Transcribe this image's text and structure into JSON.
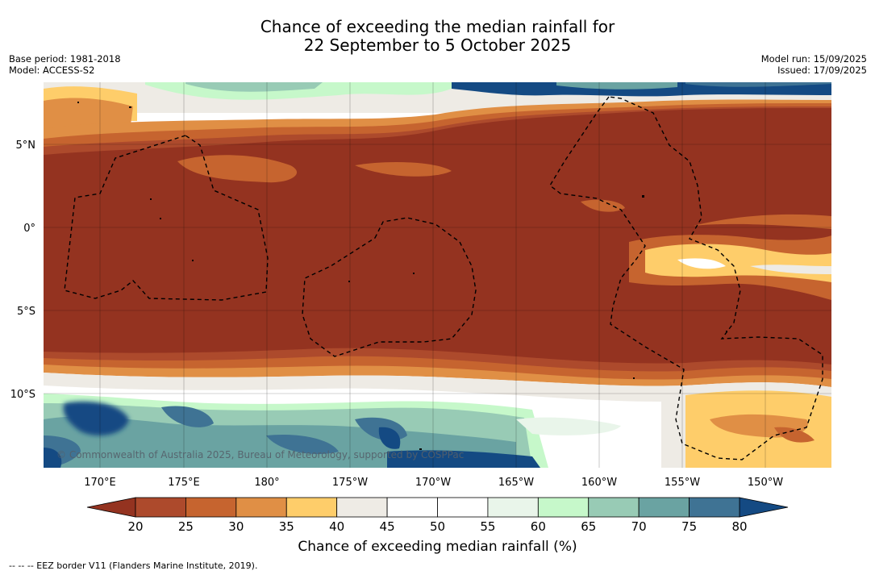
{
  "header": {
    "title_line1": "Chance of exceeding the median rainfall for",
    "title_line2": "22 September to 5 October 2025",
    "base_period": "Base period: 1981-2018",
    "model": "Model: ACCESS-S2",
    "model_run": "Model run: 15/09/2025",
    "issued": "Issued: 17/09/2025"
  },
  "map": {
    "lat_labels": [
      "5°N",
      "0°",
      "5°S",
      "10°S"
    ],
    "lon_labels": [
      "170°E",
      "175°E",
      "180°",
      "175°W",
      "170°W",
      "165°W",
      "160°W",
      "155°W",
      "150°W"
    ],
    "copyright": "© Commonwealth of Australia 2025, Bureau of Meteorology, supported by COSPPac",
    "footnote": "-- -- -- EEZ border V11 (Flanders Marine Institute, 2019)."
  },
  "colorbar": {
    "label": "Chance of exceeding median rainfall (%)",
    "ticks": [
      "20",
      "25",
      "30",
      "35",
      "40",
      "45",
      "50",
      "55",
      "60",
      "65",
      "70",
      "75",
      "80"
    ],
    "colors": [
      "#943320",
      "#ad4a2c",
      "#c6642f",
      "#e08f45",
      "#fecd6a",
      "#eeebe5",
      "#ffffff",
      "#ffffff",
      "#e9f5ea",
      "#c6f8ca",
      "#98cbb5",
      "#6aa3a2",
      "#3f7394",
      "#144a83"
    ],
    "extend_low_color": "#943320",
    "extend_high_color": "#144a83"
  }
}
